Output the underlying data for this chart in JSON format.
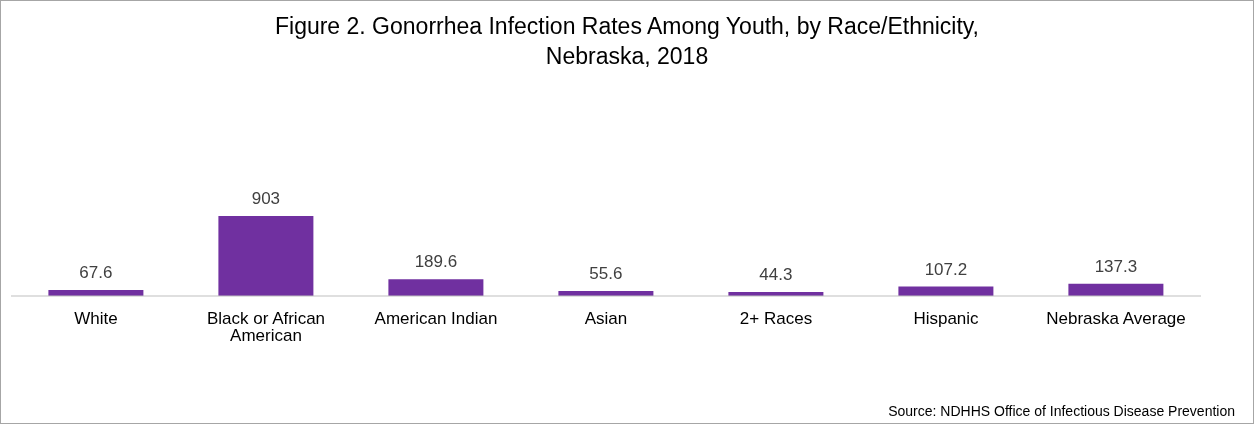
{
  "chart_data": {
    "type": "bar",
    "title": "Figure 2.  Gonorrhea Infection Rates Among Youth, by Race/Ethnicity, Nebraska, 2018",
    "categories": [
      "White",
      "Black or African American",
      "American Indian",
      "Asian",
      "2+ Races",
      "Hispanic",
      "Nebraska Average"
    ],
    "values": [
      67.6,
      903,
      189.6,
      55.6,
      44.3,
      107.2,
      137.3
    ],
    "colors": [
      "#7030a0",
      "#7030a0",
      "#7030a0",
      "#7030a0",
      "#7030a0",
      "#7030a0",
      "#7030a0"
    ],
    "data_labels": true,
    "grid": false,
    "legend": false,
    "annotations": [
      "Source: NDHHS Office of Infectious Disease Prevention"
    ]
  }
}
